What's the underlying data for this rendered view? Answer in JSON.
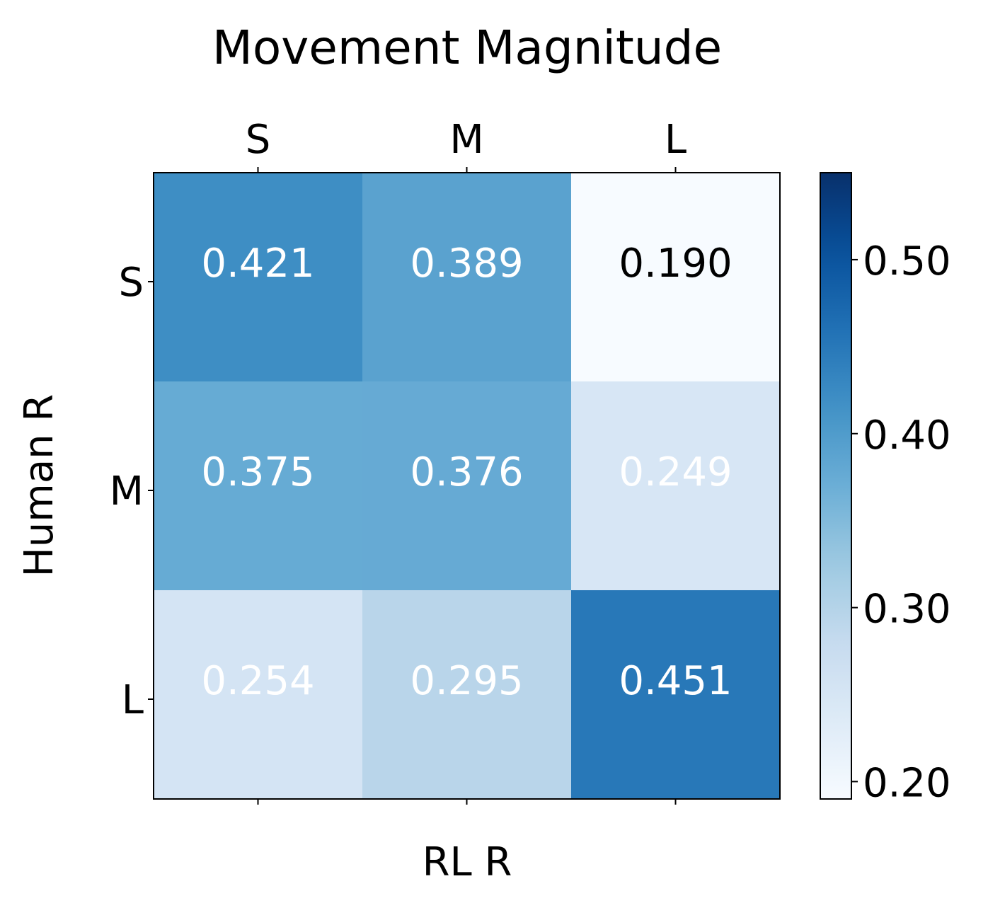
{
  "chart_data": {
    "type": "heatmap",
    "title": "Movement Magnitude",
    "xlabel": "RL R",
    "ylabel": "Human R",
    "x_categories": [
      "S",
      "M",
      "L"
    ],
    "y_categories": [
      "S",
      "M",
      "L"
    ],
    "values": [
      [
        0.421,
        0.389,
        0.19
      ],
      [
        0.375,
        0.376,
        0.249
      ],
      [
        0.254,
        0.295,
        0.451
      ]
    ],
    "cell_labels": [
      [
        "0.421",
        "0.389",
        "0.190"
      ],
      [
        "0.375",
        "0.376",
        "0.249"
      ],
      [
        "0.254",
        "0.295",
        "0.451"
      ]
    ],
    "x_axis_position": "top",
    "colormap": "Blues",
    "colorbar": {
      "vmin": 0.19,
      "vmax": 0.55,
      "ticks": [
        0.2,
        0.3,
        0.4,
        0.5
      ],
      "tick_labels": [
        "0.20",
        "0.30",
        "0.40",
        "0.50"
      ],
      "position": "right"
    },
    "grid": false
  }
}
